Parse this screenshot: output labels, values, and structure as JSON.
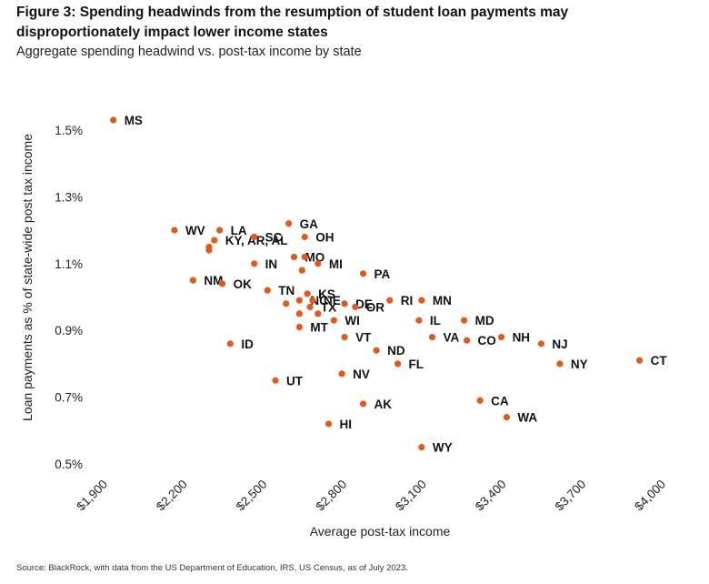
{
  "figure": {
    "title": "Figure 3: Spending headwinds from the resumption of student loan payments may disproportionately impact lower income states",
    "subtitle": "Aggregate spending headwind vs. post-tax income by state",
    "source": "Source: BlackRock, with data from the US Department of Education, IRS, US Census, as of July 2023."
  },
  "chart_data": {
    "type": "scatter",
    "title": "Aggregate spending headwind vs. post-tax income by state",
    "xlabel": "Average post-tax income",
    "ylabel": "Loan payments as % of state-wide post tax income",
    "xlim": [
      1900,
      4000
    ],
    "ylim": [
      0.5,
      1.6
    ],
    "grid": false,
    "marker_color": "#e05a1e",
    "x_ticks": [
      1900,
      2200,
      2500,
      2800,
      3100,
      3400,
      3700,
      4000
    ],
    "x_tick_labels": [
      "$1,900",
      "$2,200",
      "$2,500",
      "$2,800",
      "$3,100",
      "$3,400",
      "$3,700",
      "$4,000"
    ],
    "y_ticks": [
      0.5,
      0.7,
      0.9,
      1.1,
      1.3,
      1.5
    ],
    "y_tick_labels": [
      "0.5%",
      "0.7%",
      "0.9%",
      "1.1%",
      "1.3%",
      "1.5%"
    ],
    "points": [
      {
        "x": 1940,
        "y": 1.53,
        "label": "MS"
      },
      {
        "x": 2170,
        "y": 1.2,
        "label": "WV"
      },
      {
        "x": 2340,
        "y": 1.2,
        "label": "LA"
      },
      {
        "x": 2320,
        "y": 1.17,
        "label": "KY, AR, AL"
      },
      {
        "x": 2300,
        "y": 1.15
      },
      {
        "x": 2300,
        "y": 1.14
      },
      {
        "x": 2600,
        "y": 1.22,
        "label": "GA"
      },
      {
        "x": 2470,
        "y": 1.18,
        "label": "SC"
      },
      {
        "x": 2660,
        "y": 1.18,
        "label": "OH"
      },
      {
        "x": 2620,
        "y": 1.12,
        "label": "MO"
      },
      {
        "x": 2660,
        "y": 1.12
      },
      {
        "x": 2710,
        "y": 1.1,
        "label": "MI"
      },
      {
        "x": 2650,
        "y": 1.08
      },
      {
        "x": 2470,
        "y": 1.1,
        "label": "IN"
      },
      {
        "x": 2240,
        "y": 1.05,
        "label": "NM"
      },
      {
        "x": 2350,
        "y": 1.04,
        "label": "OK"
      },
      {
        "x": 2880,
        "y": 1.07,
        "label": "PA"
      },
      {
        "x": 2520,
        "y": 1.02,
        "label": "TN"
      },
      {
        "x": 2670,
        "y": 1.01,
        "label": "KS"
      },
      {
        "x": 2640,
        "y": 0.99,
        "label": "NC"
      },
      {
        "x": 2590,
        "y": 0.98
      },
      {
        "x": 2690,
        "y": 0.99,
        "label": "NE"
      },
      {
        "x": 2680,
        "y": 0.97,
        "label": "TX"
      },
      {
        "x": 2640,
        "y": 0.95
      },
      {
        "x": 2710,
        "y": 0.95
      },
      {
        "x": 2810,
        "y": 0.98,
        "label": "DE"
      },
      {
        "x": 2850,
        "y": 0.97,
        "label": "OR"
      },
      {
        "x": 2980,
        "y": 0.99,
        "label": "RI"
      },
      {
        "x": 3100,
        "y": 0.99,
        "label": "MN"
      },
      {
        "x": 2770,
        "y": 0.93,
        "label": "WI"
      },
      {
        "x": 3090,
        "y": 0.93,
        "label": "IL"
      },
      {
        "x": 3260,
        "y": 0.93,
        "label": "MD"
      },
      {
        "x": 2640,
        "y": 0.91,
        "label": "MT"
      },
      {
        "x": 2810,
        "y": 0.88,
        "label": "VT"
      },
      {
        "x": 3140,
        "y": 0.88,
        "label": "VA"
      },
      {
        "x": 3270,
        "y": 0.87,
        "label": "CO"
      },
      {
        "x": 3400,
        "y": 0.88,
        "label": "NH"
      },
      {
        "x": 3550,
        "y": 0.86,
        "label": "NJ"
      },
      {
        "x": 2380,
        "y": 0.86,
        "label": "ID"
      },
      {
        "x": 2930,
        "y": 0.84,
        "label": "ND"
      },
      {
        "x": 3010,
        "y": 0.8,
        "label": "FL"
      },
      {
        "x": 3620,
        "y": 0.8,
        "label": "NY"
      },
      {
        "x": 3920,
        "y": 0.81,
        "label": "CT"
      },
      {
        "x": 2800,
        "y": 0.77,
        "label": "NV"
      },
      {
        "x": 2550,
        "y": 0.75,
        "label": "UT"
      },
      {
        "x": 3320,
        "y": 0.69,
        "label": "CA"
      },
      {
        "x": 2880,
        "y": 0.68,
        "label": "AK"
      },
      {
        "x": 3420,
        "y": 0.64,
        "label": "WA"
      },
      {
        "x": 2750,
        "y": 0.62,
        "label": "HI"
      },
      {
        "x": 3100,
        "y": 0.55,
        "label": "WY"
      }
    ]
  }
}
